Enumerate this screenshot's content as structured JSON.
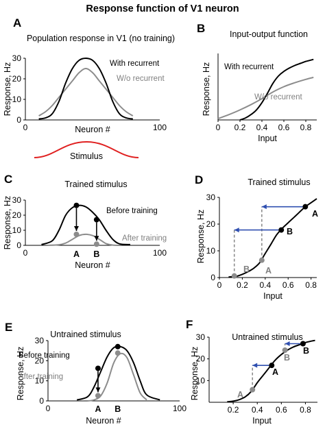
{
  "figure_title": "Response function of V1 neuron",
  "colors": {
    "black": "#000000",
    "gray": "#8c8c8c",
    "red": "#e02020",
    "blue": "#2f4fb0"
  },
  "chart_data": [
    {
      "panel": "A",
      "type": "line",
      "title": "Population response in V1 (no training)",
      "xlabel": "Neuron #",
      "ylabel": "Response, Hz",
      "xlim": [
        0,
        100
      ],
      "ylim": [
        0,
        30
      ],
      "xticks": [
        "0",
        "100"
      ],
      "yticks": [
        "0",
        "10",
        "20",
        "30"
      ],
      "series": [
        {
          "name": "With recurrent",
          "color": "#000000",
          "x": [
            10,
            15,
            20,
            25,
            30,
            35,
            40,
            45,
            50,
            55,
            60,
            65,
            70,
            75,
            80
          ],
          "y": [
            0.5,
            1,
            3,
            9,
            18,
            25,
            29,
            30,
            29,
            25,
            18,
            9,
            3,
            1,
            0.5
          ]
        },
        {
          "name": "W/o recurrent",
          "color": "#8c8c8c",
          "x": [
            10,
            15,
            20,
            25,
            30,
            35,
            40,
            45,
            50,
            55,
            60,
            65,
            70,
            75,
            80
          ],
          "y": [
            2,
            4,
            7,
            11,
            15,
            19,
            23,
            25,
            23,
            19,
            15,
            11,
            7,
            4,
            2
          ]
        }
      ],
      "stimulus": {
        "label": "Stimulus",
        "color": "#e02020"
      }
    },
    {
      "panel": "B",
      "type": "line",
      "title": "Input-output function",
      "xlabel": "Input",
      "ylabel": "Response, Hz",
      "xlim": [
        0,
        0.9
      ],
      "ylim": [
        0,
        1
      ],
      "xticks": [
        "0",
        "0.2",
        "0.4",
        "0.6",
        "0.8"
      ],
      "series": [
        {
          "name": "With recurrent",
          "color": "#000000",
          "x": [
            0.2,
            0.25,
            0.3,
            0.35,
            0.4,
            0.45,
            0.5,
            0.55,
            0.6,
            0.65,
            0.7,
            0.75,
            0.8,
            0.87
          ],
          "y": [
            0,
            0.03,
            0.08,
            0.15,
            0.26,
            0.4,
            0.55,
            0.66,
            0.73,
            0.78,
            0.82,
            0.85,
            0.88,
            0.91
          ]
        },
        {
          "name": "W/o recurrent",
          "color": "#8c8c8c",
          "x": [
            0,
            0.1,
            0.2,
            0.3,
            0.4,
            0.5,
            0.6,
            0.7,
            0.8,
            0.87
          ],
          "y": [
            0.02,
            0.08,
            0.15,
            0.23,
            0.32,
            0.42,
            0.5,
            0.56,
            0.61,
            0.64
          ]
        }
      ]
    },
    {
      "panel": "C",
      "type": "line",
      "title": "Trained stimulus",
      "xlabel": "Neuron #",
      "ylabel": "Response, Hz",
      "xlim": [
        0,
        100
      ],
      "ylim": [
        0,
        30
      ],
      "xticks": [
        "0",
        "100"
      ],
      "yticks": [
        "0",
        "10",
        "20",
        "30"
      ],
      "series": [
        {
          "name": "Before training",
          "color": "#000000",
          "x": [
            12,
            20,
            25,
            30,
            35,
            40,
            45,
            50,
            55,
            60,
            65,
            70,
            78
          ],
          "y": [
            0.5,
            3,
            10,
            20,
            25,
            26.5,
            25.5,
            22,
            17,
            10,
            4,
            1,
            0.5
          ]
        },
        {
          "name": "After training",
          "color": "#8c8c8c",
          "x": [
            15,
            25,
            30,
            35,
            40,
            45,
            50,
            55,
            60,
            65,
            70
          ],
          "y": [
            0,
            0.4,
            1.5,
            4,
            6.5,
            7.3,
            6.5,
            4,
            1.2,
            0.2,
            0
          ]
        }
      ],
      "points": [
        {
          "label": "A",
          "x": 38,
          "before": 26.5,
          "after": 7.3
        },
        {
          "label": "B",
          "x": 53,
          "before": 17,
          "after": 0.8
        }
      ]
    },
    {
      "panel": "D",
      "type": "line",
      "title": "Trained stimulus",
      "xlabel": "Input",
      "ylabel": "Response, Hz",
      "xlim": [
        0,
        0.85
      ],
      "ylim": [
        0,
        30
      ],
      "xticks": [
        "0",
        "0.2",
        "0.4",
        "0.6",
        "0.8"
      ],
      "yticks": [
        "0",
        "10",
        "20",
        "30"
      ],
      "curve": {
        "x": [
          0.08,
          0.15,
          0.2,
          0.25,
          0.3,
          0.35,
          0.4,
          0.45,
          0.5,
          0.55,
          0.6,
          0.65,
          0.7,
          0.75,
          0.8,
          0.85
        ],
        "y": [
          0.2,
          0.5,
          1.2,
          2.2,
          3.5,
          5.5,
          9,
          12.5,
          16,
          18.5,
          20.5,
          22.5,
          24.5,
          26.5,
          28,
          29.5
        ]
      },
      "points": [
        {
          "label": "A",
          "before_x": 0.75,
          "before_y": 26.5,
          "after_x": 0.37,
          "after_y": 6.5
        },
        {
          "label": "B",
          "before_x": 0.54,
          "before_y": 17.8,
          "after_x": 0.13,
          "after_y": 0.6
        }
      ]
    },
    {
      "panel": "E",
      "type": "line",
      "title": "Untrained stimulus",
      "xlabel": "Neuron #",
      "ylabel": "Response, Hz",
      "xlim": [
        0,
        100
      ],
      "ylim": [
        0,
        30
      ],
      "xticks": [
        "0",
        "100"
      ],
      "yticks": [
        "0",
        "10",
        "20",
        "30"
      ],
      "series": [
        {
          "name": "Before training",
          "color": "#000000",
          "x": [
            22,
            30,
            35,
            40,
            45,
            50,
            55,
            60,
            65,
            70,
            75,
            85
          ],
          "y": [
            0.5,
            2,
            7,
            14.5,
            22,
            26.5,
            27,
            25,
            19,
            10,
            3,
            0.5
          ]
        },
        {
          "name": "After training",
          "color": "#8c8c8c",
          "x": [
            30,
            35,
            40,
            45,
            50,
            55,
            60,
            65,
            70,
            75
          ],
          "y": [
            0,
            0.5,
            2.5,
            9,
            19,
            23.5,
            21.5,
            13,
            4,
            0.5
          ]
        }
      ],
      "points": [
        {
          "label": "A",
          "x": 38,
          "before": 16.2,
          "after": 2.6
        },
        {
          "label": "B",
          "x": 53,
          "before": 27,
          "after": 23.8
        }
      ]
    },
    {
      "panel": "F",
      "type": "line",
      "title": "Untrained stimulus",
      "xlabel": "Input",
      "ylabel": "Response, Hz",
      "xlim": [
        0,
        0.9
      ],
      "ylim": [
        0,
        30
      ],
      "xticks": [
        "0.2",
        "0.4",
        "0.6",
        "0.8"
      ],
      "yticks": [
        "10",
        "20",
        "30"
      ],
      "curve": {
        "x": [
          0.15,
          0.2,
          0.25,
          0.3,
          0.35,
          0.4,
          0.45,
          0.5,
          0.55,
          0.6,
          0.65,
          0.7,
          0.75,
          0.8,
          0.85,
          0.88
        ],
        "y": [
          0.2,
          0.5,
          1.2,
          2.5,
          5,
          9,
          12.5,
          16,
          19.5,
          22,
          24,
          25.5,
          26.5,
          27.5,
          28.2,
          28.5
        ]
      },
      "points": [
        {
          "label": "A",
          "before_x": 0.52,
          "before_y": 17,
          "after_x": 0.36,
          "after_y": 5.8
        },
        {
          "label": "B",
          "before_x": 0.78,
          "before_y": 27,
          "after_x": 0.63,
          "after_y": 24
        }
      ]
    }
  ],
  "annotations": {
    "A_with": "With recurrent",
    "A_without": "W/o recurrent",
    "B_with": "With recurrent",
    "B_without": "W/o recurrent",
    "C_before": "Before training",
    "C_after": "After training",
    "E_before": "Before training",
    "E_after": "After training"
  }
}
